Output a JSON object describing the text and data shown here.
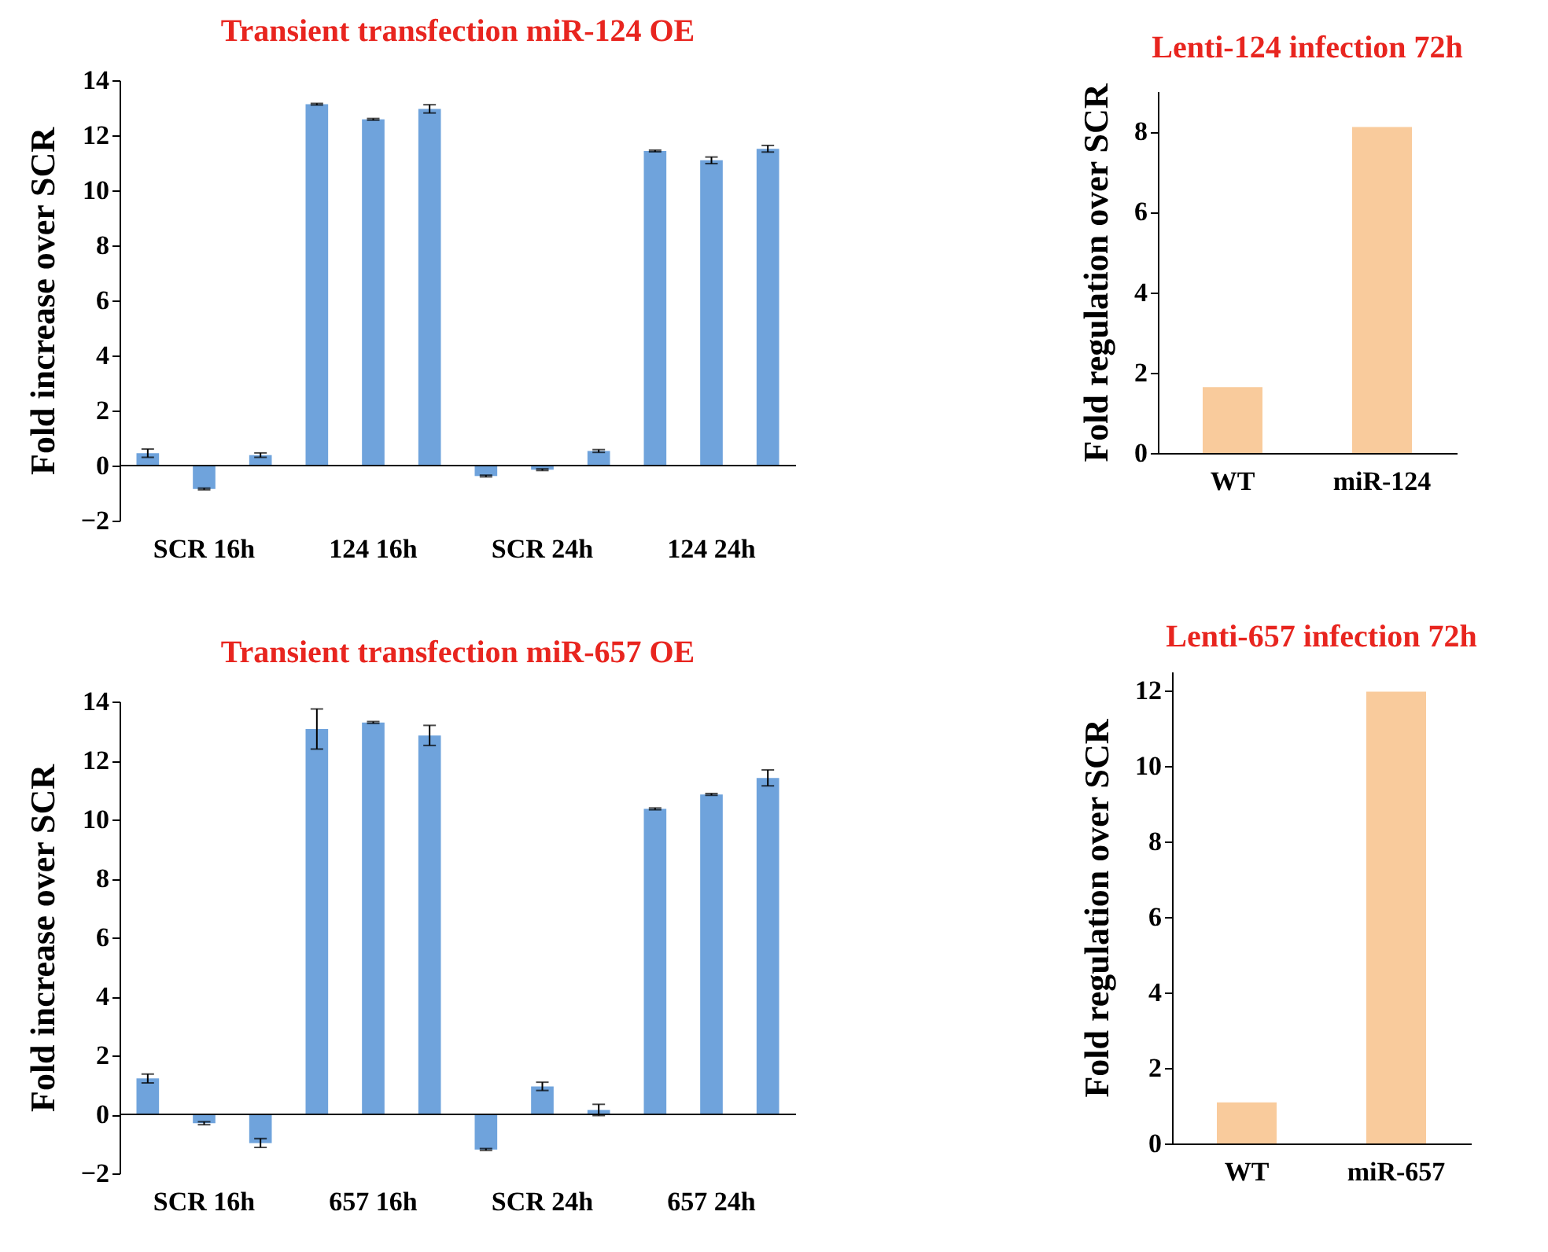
{
  "chart_data": [
    {
      "type": "bar",
      "title": "Transient transfection miR-124 OE",
      "ylabel": "Fold increase over SCR",
      "categories": [
        null,
        "SCR 16h",
        null,
        null,
        "124 16h",
        null,
        null,
        "SCR 24h",
        null,
        null,
        "124 24h",
        null
      ],
      "values": [
        0.45,
        -0.85,
        0.38,
        13.13,
        12.58,
        12.96,
        -0.38,
        -0.15,
        0.53,
        11.43,
        11.09,
        11.51
      ],
      "errors": [
        0.15,
        0.03,
        0.08,
        0.03,
        0.03,
        0.15,
        0.03,
        0.03,
        0.05,
        0.03,
        0.12,
        0.12
      ],
      "color": "#6fa3dc",
      "ylim": [
        -2,
        14
      ],
      "yticks": [
        -2,
        0,
        2,
        4,
        6,
        8,
        10,
        12,
        14
      ]
    },
    {
      "type": "bar",
      "title": "Lenti-124 infection 72h",
      "ylabel": "Fold regulation over SCR",
      "categories": [
        "WT",
        "miR-124"
      ],
      "values": [
        1.64,
        8.11
      ],
      "color": "#f9cb9c",
      "ylim": [
        0,
        9
      ],
      "yticks": [
        0,
        2,
        4,
        6,
        8
      ]
    },
    {
      "type": "bar",
      "title": "Transient transfection miR-657 OE",
      "ylabel": "Fold increase over SCR",
      "categories": [
        null,
        "SCR 16h",
        null,
        null,
        "657 16h",
        null,
        null,
        "SCR 24h",
        null,
        null,
        "657 24h",
        null
      ],
      "values": [
        1.22,
        -0.3,
        -0.97,
        13.07,
        13.29,
        12.85,
        -1.19,
        0.95,
        0.15,
        10.36,
        10.85,
        11.41
      ],
      "errors": [
        0.15,
        0.05,
        0.15,
        0.68,
        0.03,
        0.34,
        0.03,
        0.14,
        0.19,
        0.03,
        0.03,
        0.27
      ],
      "color": "#6fa3dc",
      "ylim": [
        -2,
        14
      ],
      "yticks": [
        -2,
        0,
        2,
        4,
        6,
        8,
        10,
        12,
        14
      ]
    },
    {
      "type": "bar",
      "title": "Lenti-657 infection 72h",
      "ylabel": "Fold regulation over SCR",
      "categories": [
        "WT",
        "miR-657"
      ],
      "values": [
        1.09,
        11.97
      ],
      "color": "#f9cb9c",
      "ylim": [
        0,
        12.5
      ],
      "yticks": [
        0,
        2,
        4,
        6,
        8,
        10,
        12
      ]
    }
  ]
}
